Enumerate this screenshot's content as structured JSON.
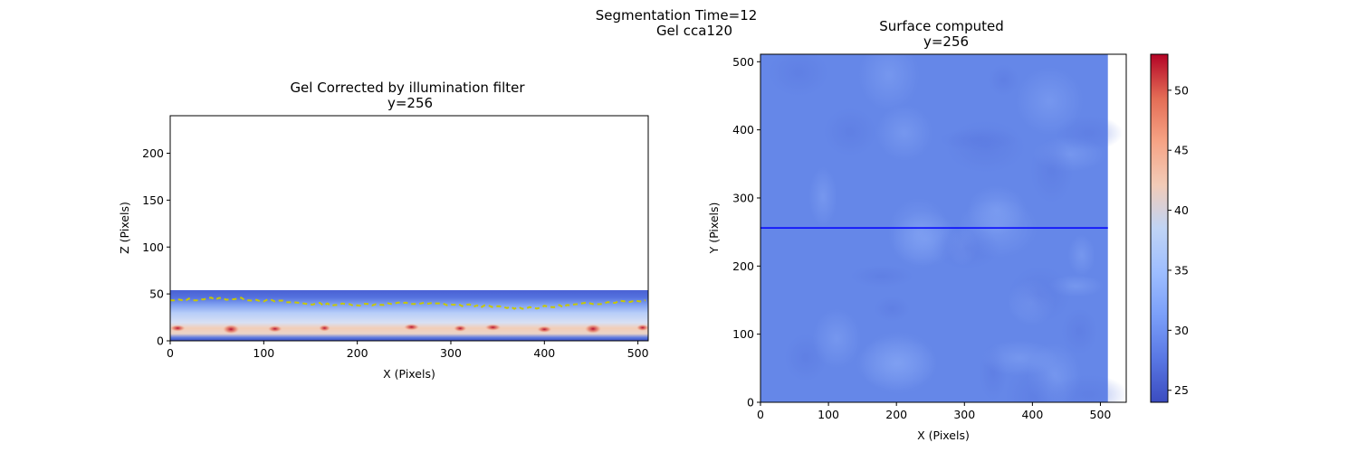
{
  "figure": {
    "suptitle_line1": "Segmentation Time=12",
    "suptitle_line2": "Gel cca120"
  },
  "chart_data": [
    {
      "type": "heatmap",
      "title_line1": "Gel Corrected by illumination filter",
      "title_line2": "y=256",
      "xlabel": "X (Pixels)",
      "ylabel": "Z (Pixels)",
      "xlim": [
        0,
        511
      ],
      "ylim": [
        0,
        240
      ],
      "xticks": [
        0,
        100,
        200,
        300,
        400,
        500
      ],
      "yticks": [
        0,
        50,
        100,
        150,
        200
      ],
      "data_extent_z": [
        0,
        54
      ],
      "colormap": "coolwarm",
      "surface_line_color": "#c8c800",
      "surface_line_style": "dashed",
      "surface_z_range": [
        33,
        47
      ]
    },
    {
      "type": "heatmap",
      "title_line1": "Surface computed",
      "title_line2": "y=256",
      "xlabel": "X (Pixels)",
      "ylabel": "Y (Pixels)",
      "xlim": [
        0,
        538
      ],
      "ylim": [
        0,
        511
      ],
      "xticks": [
        0,
        100,
        200,
        300,
        400,
        500
      ],
      "yticks": [
        0,
        100,
        200,
        300,
        400,
        500
      ],
      "data_extent_x": [
        0,
        511
      ],
      "colormap": "coolwarm",
      "marker_line_y": 256,
      "marker_line_color": "#0000ff",
      "colorbar": {
        "min": 24,
        "max": 53,
        "ticks": [
          25,
          30,
          35,
          40,
          45,
          50
        ]
      }
    }
  ]
}
